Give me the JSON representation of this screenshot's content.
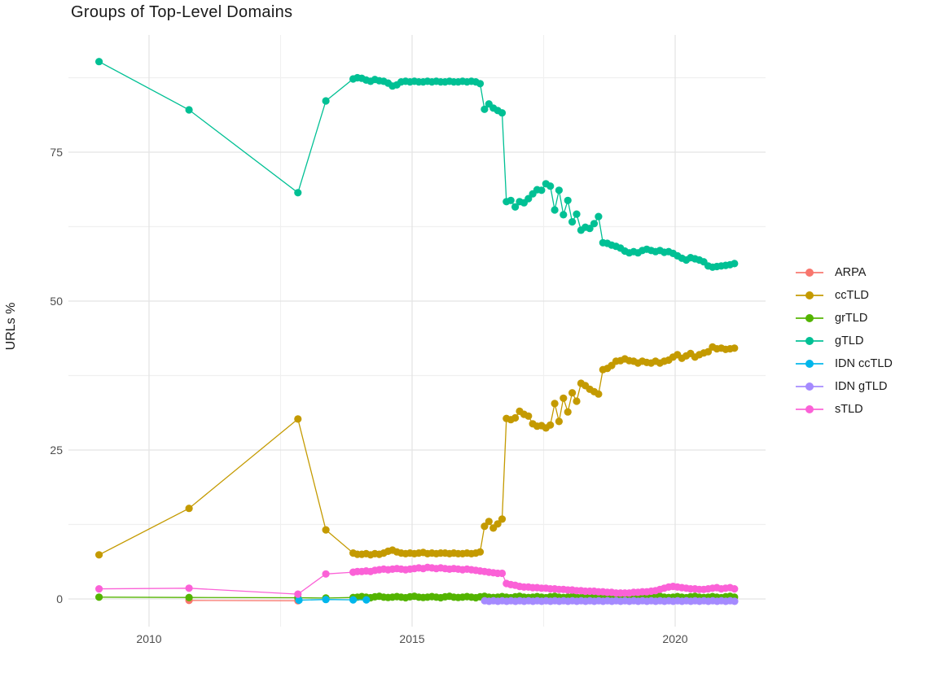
{
  "page": {
    "background": "#ffffff"
  },
  "text": {
    "title": "Groups of Top-Level Domains",
    "y_axis_title": "URLs %"
  },
  "style": {
    "title_color": "#1a1a1a",
    "tick_label_color": "#4d4d4d",
    "grid_major_color": "#e4e4e4",
    "grid_minor_color": "#f0f0f0",
    "background": "#ffffff"
  },
  "chart_data": {
    "type": "line",
    "title": "Groups of Top-Level Domains",
    "xlabel": "",
    "ylabel": "URLs %",
    "grid": true,
    "legend_position": "right",
    "marker": "point",
    "xlim": [
      2008.45,
      2021.65
    ],
    "ylim": [
      -4.8,
      94.7
    ],
    "x_axis": {
      "ticks": [
        {
          "value": 2010,
          "label": "2010"
        },
        {
          "value": 2015,
          "label": "2015"
        },
        {
          "value": 2020,
          "label": "2020"
        }
      ],
      "minor": [
        2012.5,
        2017.5
      ]
    },
    "y_axis": {
      "ticks": [
        {
          "value": 0,
          "label": "0"
        },
        {
          "value": 25,
          "label": "25"
        },
        {
          "value": 50,
          "label": "50"
        },
        {
          "value": 75,
          "label": "75"
        }
      ],
      "minor": [
        12.5,
        37.5,
        62.5,
        87.5
      ]
    },
    "series": [
      {
        "name": "ARPA",
        "color": "#F8766D",
        "points": [
          [
            2010.76,
            -0.25
          ],
          [
            2012.83,
            -0.3
          ]
        ]
      },
      {
        "name": "ccTLD",
        "color": "#C49A00",
        "points": [
          [
            2009.05,
            7.4
          ],
          [
            2010.76,
            15.2
          ],
          [
            2012.83,
            30.2
          ],
          [
            2013.36,
            11.6
          ],
          [
            2013.88,
            7.7
          ]
        ],
        "monthly": {
          "start": 2013.96,
          "values": [
            7.5,
            7.5,
            7.6,
            7.4,
            7.6,
            7.5,
            7.7,
            8.0,
            8.2,
            7.9,
            7.7,
            7.6,
            7.7,
            7.6,
            7.7,
            7.8,
            7.6,
            7.7,
            7.6,
            7.7,
            7.7,
            7.6,
            7.7,
            7.6,
            7.6,
            7.7,
            7.6,
            7.7,
            7.9,
            12.2,
            13.0,
            11.9,
            12.6,
            13.4,
            30.3,
            30.1,
            30.4,
            31.5,
            31.0,
            30.7,
            29.4,
            29.0,
            29.1,
            28.7,
            29.2,
            32.8,
            29.8,
            33.7,
            31.4,
            34.6,
            33.2,
            36.2,
            35.8,
            35.2,
            34.8,
            34.4,
            38.5,
            38.7,
            39.2,
            39.9,
            40.0,
            40.3,
            40.0,
            39.9,
            39.6,
            39.9,
            39.7,
            39.6,
            39.9,
            39.6,
            39.9,
            40.1,
            40.6,
            41.0,
            40.4,
            40.8,
            41.2,
            40.6,
            41.0,
            41.3,
            41.5,
            42.3,
            42.0,
            42.1,
            41.9,
            42.0,
            42.1
          ]
        }
      },
      {
        "name": "grTLD",
        "color": "#53B400",
        "points": [
          [
            2009.05,
            0.3
          ],
          [
            2010.76,
            0.25
          ],
          [
            2012.83,
            0.2
          ],
          [
            2013.36,
            0.15
          ],
          [
            2013.88,
            0.25
          ]
        ],
        "monthly": {
          "start": 2013.96,
          "values": [
            0.3,
            0.4,
            0.3,
            0.2,
            0.35,
            0.45,
            0.3,
            0.25,
            0.3,
            0.4,
            0.3,
            0.2,
            0.35,
            0.45,
            0.3,
            0.25,
            0.3,
            0.4,
            0.3,
            0.2,
            0.35,
            0.45,
            0.3,
            0.25,
            0.3,
            0.4,
            0.3,
            0.2,
            0.35,
            0.45,
            0.3,
            0.25,
            0.3,
            0.4,
            0.3,
            0.2,
            0.35,
            0.45,
            0.3,
            0.25,
            0.3,
            0.4,
            0.3,
            0.2,
            0.35,
            0.45,
            0.3,
            0.25,
            0.3,
            0.4,
            0.3,
            0.2,
            0.35,
            0.45,
            0.3,
            0.25,
            0.3,
            0.4,
            0.3,
            0.2,
            0.35,
            0.45,
            0.3,
            0.25,
            0.3,
            0.4,
            0.3,
            0.2,
            0.35,
            0.45,
            0.3,
            0.25,
            0.3,
            0.4,
            0.3,
            0.2,
            0.35,
            0.45,
            0.3,
            0.25,
            0.3,
            0.4,
            0.3,
            0.2,
            0.35,
            0.45,
            0.3
          ]
        }
      },
      {
        "name": "gTLD",
        "color": "#00C094",
        "points": [
          [
            2009.05,
            90.2
          ],
          [
            2010.76,
            82.1
          ],
          [
            2012.83,
            68.2
          ],
          [
            2013.36,
            83.6
          ],
          [
            2013.88,
            87.3
          ]
        ],
        "monthly": {
          "start": 2013.96,
          "values": [
            87.5,
            87.4,
            87.1,
            86.9,
            87.2,
            87.0,
            86.9,
            86.6,
            86.1,
            86.3,
            86.8,
            86.9,
            86.8,
            86.9,
            86.8,
            86.8,
            86.9,
            86.8,
            86.9,
            86.8,
            86.8,
            86.9,
            86.8,
            86.8,
            86.9,
            86.8,
            86.9,
            86.8,
            86.5,
            82.2,
            83.1,
            82.4,
            82.0,
            81.6,
            66.7,
            66.9,
            65.8,
            66.7,
            66.5,
            67.2,
            68.0,
            68.7,
            68.6,
            69.7,
            69.3,
            65.3,
            68.6,
            64.5,
            66.9,
            63.3,
            64.6,
            61.9,
            62.4,
            62.2,
            63.0,
            64.2,
            59.8,
            59.7,
            59.4,
            59.2,
            58.9,
            58.4,
            58.1,
            58.3,
            58.1,
            58.5,
            58.7,
            58.5,
            58.3,
            58.5,
            58.2,
            58.3,
            58.0,
            57.6,
            57.2,
            56.9,
            57.3,
            57.1,
            56.9,
            56.6,
            55.9,
            55.7,
            55.8,
            55.9,
            56.0,
            56.1,
            56.3
          ]
        }
      },
      {
        "name": "IDN ccTLD",
        "color": "#00B6EB",
        "points": [
          [
            2012.85,
            -0.2
          ],
          [
            2013.36,
            -0.1
          ],
          [
            2013.88,
            -0.15
          ],
          [
            2014.13,
            -0.15
          ]
        ]
      },
      {
        "name": "IDN gTLD",
        "color": "#A58AFF",
        "monthly": {
          "start": 2016.38,
          "values": [
            -0.3,
            -0.4,
            -0.3,
            -0.4,
            -0.3,
            -0.4,
            -0.3,
            -0.4,
            -0.3,
            -0.4,
            -0.3,
            -0.4,
            -0.3,
            -0.4,
            -0.3,
            -0.4,
            -0.3,
            -0.4,
            -0.3,
            -0.4,
            -0.3,
            -0.4,
            -0.3,
            -0.4,
            -0.3,
            -0.4,
            -0.3,
            -0.4,
            -0.3,
            -0.4,
            -0.3,
            -0.4,
            -0.3,
            -0.4,
            -0.3,
            -0.4,
            -0.3,
            -0.4,
            -0.3,
            -0.4,
            -0.3,
            -0.4,
            -0.3,
            -0.4,
            -0.3,
            -0.4,
            -0.3,
            -0.4,
            -0.3,
            -0.4,
            -0.3,
            -0.4,
            -0.3,
            -0.4,
            -0.3,
            -0.4,
            -0.3,
            -0.4
          ]
        }
      },
      {
        "name": "sTLD",
        "color": "#FB61D7",
        "points": [
          [
            2009.05,
            1.7
          ],
          [
            2010.76,
            1.8
          ],
          [
            2012.83,
            0.8
          ],
          [
            2013.36,
            4.2
          ],
          [
            2013.88,
            4.5
          ]
        ],
        "monthly": {
          "start": 2013.96,
          "values": [
            4.6,
            4.6,
            4.7,
            4.6,
            4.8,
            4.9,
            5.0,
            4.9,
            5.0,
            5.1,
            5.0,
            4.9,
            5.0,
            5.1,
            5.2,
            5.1,
            5.3,
            5.2,
            5.1,
            5.2,
            5.1,
            5.0,
            5.1,
            5.0,
            4.9,
            5.0,
            4.9,
            4.8,
            4.7,
            4.6,
            4.5,
            4.4,
            4.3,
            4.3,
            2.6,
            2.4,
            2.3,
            2.1,
            2.0,
            2.0,
            1.9,
            1.9,
            1.8,
            1.8,
            1.7,
            1.7,
            1.6,
            1.6,
            1.5,
            1.5,
            1.4,
            1.4,
            1.3,
            1.3,
            1.3,
            1.2,
            1.2,
            1.1,
            1.1,
            1.0,
            1.0,
            1.0,
            1.0,
            1.1,
            1.1,
            1.2,
            1.2,
            1.3,
            1.4,
            1.6,
            1.8,
            2.0,
            2.1,
            2.0,
            1.9,
            1.8,
            1.7,
            1.7,
            1.6,
            1.6,
            1.7,
            1.8,
            1.9,
            1.7,
            1.8,
            1.9,
            1.7
          ]
        }
      }
    ]
  },
  "legend": {
    "items": [
      {
        "label": "ARPA"
      },
      {
        "label": "ccTLD"
      },
      {
        "label": "grTLD"
      },
      {
        "label": "gTLD"
      },
      {
        "label": "IDN ccTLD"
      },
      {
        "label": "IDN gTLD"
      },
      {
        "label": "sTLD"
      }
    ]
  }
}
